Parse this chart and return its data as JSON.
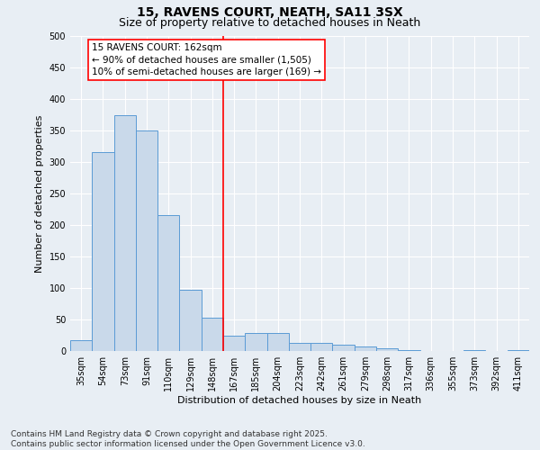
{
  "title": "15, RAVENS COURT, NEATH, SA11 3SX",
  "subtitle": "Size of property relative to detached houses in Neath",
  "xlabel": "Distribution of detached houses by size in Neath",
  "ylabel": "Number of detached properties",
  "categories": [
    "35sqm",
    "54sqm",
    "73sqm",
    "91sqm",
    "110sqm",
    "129sqm",
    "148sqm",
    "167sqm",
    "185sqm",
    "204sqm",
    "223sqm",
    "242sqm",
    "261sqm",
    "279sqm",
    "298sqm",
    "317sqm",
    "336sqm",
    "355sqm",
    "373sqm",
    "392sqm",
    "411sqm"
  ],
  "values": [
    17,
    315,
    375,
    350,
    215,
    97,
    53,
    25,
    28,
    28,
    13,
    13,
    10,
    7,
    5,
    2,
    0,
    0,
    2,
    0,
    2
  ],
  "bar_color": "#c9d9ea",
  "bar_edge_color": "#5b9bd5",
  "vline_x_index": 6.5,
  "vline_color": "red",
  "annotation_text": "15 RAVENS COURT: 162sqm\n← 90% of detached houses are smaller (1,505)\n10% of semi-detached houses are larger (169) →",
  "annotation_box_color": "white",
  "annotation_box_edge": "red",
  "ylim": [
    0,
    500
  ],
  "yticks": [
    0,
    50,
    100,
    150,
    200,
    250,
    300,
    350,
    400,
    450,
    500
  ],
  "footer_text": "Contains HM Land Registry data © Crown copyright and database right 2025.\nContains public sector information licensed under the Open Government Licence v3.0.",
  "background_color": "#e8eef4",
  "grid_color": "#ffffff",
  "title_fontsize": 10,
  "subtitle_fontsize": 9,
  "axis_label_fontsize": 8,
  "tick_fontsize": 7,
  "annotation_fontsize": 7.5,
  "footer_fontsize": 6.5
}
